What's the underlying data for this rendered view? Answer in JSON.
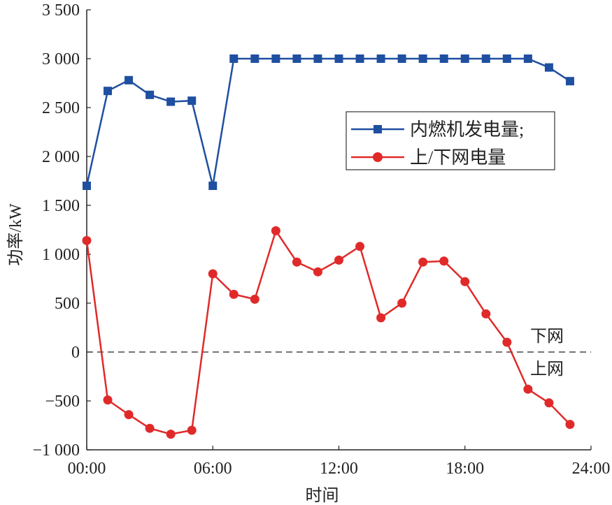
{
  "chart_data": {
    "type": "line",
    "title": "",
    "xlabel": "时间",
    "ylabel": "功率/kW",
    "xlim": [
      0,
      24
    ],
    "ylim": [
      -1000,
      3500
    ],
    "x_ticks": [
      0,
      6,
      12,
      18,
      24
    ],
    "x_tick_labels": [
      "00:00",
      "06:00",
      "12:00",
      "18:00",
      "24:00"
    ],
    "y_ticks": [
      -1000,
      -500,
      0,
      500,
      1000,
      1500,
      2000,
      2500,
      3000,
      3500
    ],
    "y_tick_labels": [
      "−1 000",
      "−500",
      "0",
      "500",
      "1 000",
      "1 500",
      "2 000",
      "2 500",
      "3 000",
      "3 500"
    ],
    "grid": false,
    "legend_position": "upper-right",
    "x": [
      0,
      1,
      2,
      3,
      4,
      5,
      6,
      7,
      8,
      9,
      10,
      11,
      12,
      13,
      14,
      15,
      16,
      17,
      18,
      19,
      20,
      21,
      22,
      23
    ],
    "series": [
      {
        "name": "内燃机发电量;",
        "color": "#1f4fa0",
        "marker": "square",
        "values": [
          1700,
          2670,
          2780,
          2630,
          2560,
          2570,
          1700,
          3000,
          3000,
          3000,
          3000,
          3000,
          3000,
          3000,
          3000,
          3000,
          3000,
          3000,
          3000,
          3000,
          3000,
          3000,
          2910,
          2770
        ]
      },
      {
        "name": "上/下网电量",
        "color": "#e02a2a",
        "marker": "circle",
        "values": [
          1140,
          -490,
          -640,
          -780,
          -840,
          -800,
          800,
          590,
          540,
          1240,
          920,
          820,
          940,
          1080,
          350,
          500,
          920,
          930,
          720,
          390,
          100,
          -380,
          -520,
          -740
        ]
      }
    ],
    "reference_line": {
      "y": 0,
      "style": "dashed"
    },
    "annotations": [
      "下网",
      "上网"
    ]
  }
}
